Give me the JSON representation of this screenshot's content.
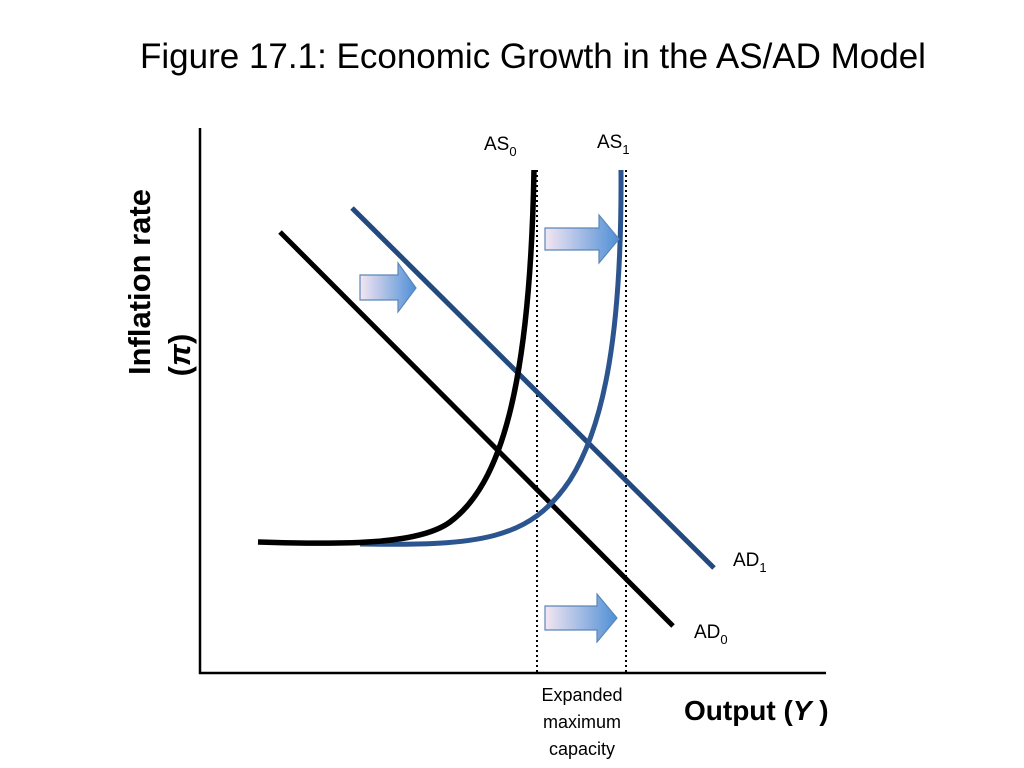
{
  "title": "Figure 17.1: Economic Growth in the AS/AD Model",
  "y_axis": {
    "label": "Inflation rate",
    "symbol": "π"
  },
  "x_axis": {
    "label": "Output (",
    "symbol": "Y",
    "close": " )"
  },
  "curves": {
    "as0": {
      "name": "AS",
      "sub": "0"
    },
    "as1": {
      "name": "AS",
      "sub": "1"
    },
    "ad0": {
      "name": "AD",
      "sub": "0"
    },
    "ad1": {
      "name": "AD",
      "sub": "1"
    }
  },
  "capacity_note": [
    "Expanded",
    "maximum",
    "capacity"
  ]
}
